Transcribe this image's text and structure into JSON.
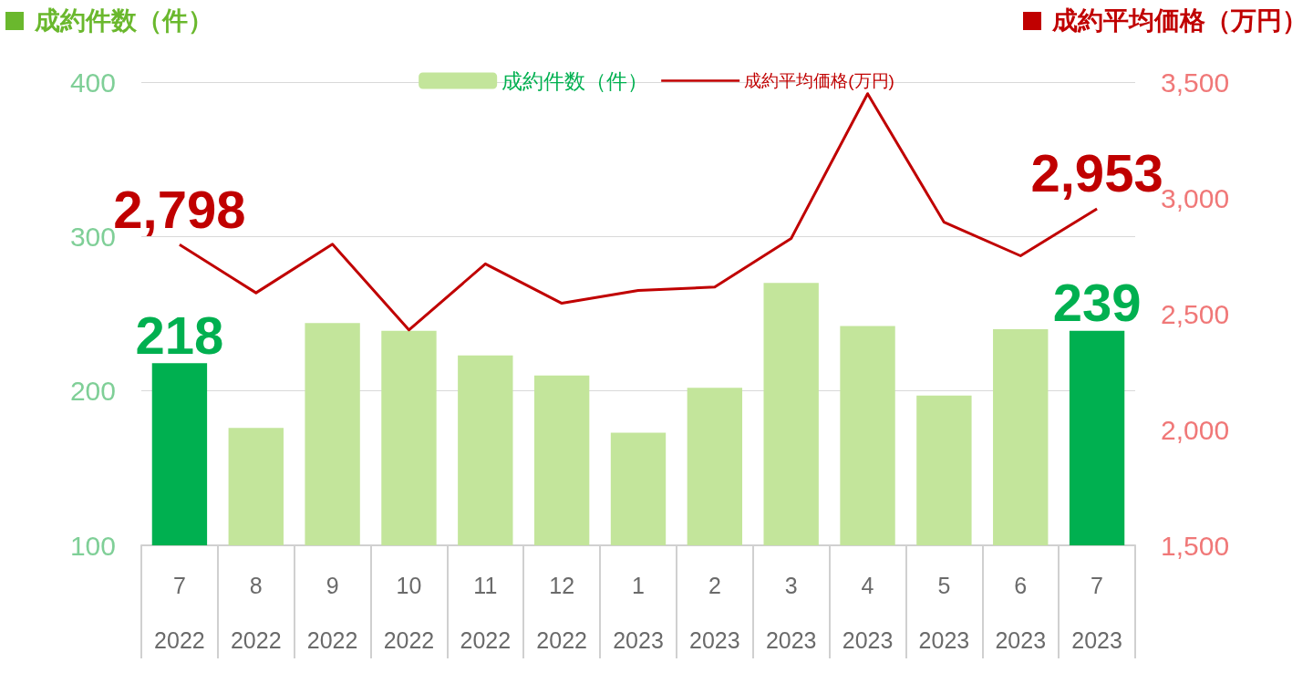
{
  "chart_data": {
    "type": "bar",
    "ylabel": "成約件数（件）",
    "y2label": "成約平均価格（万円）",
    "categories": [
      "7\n2022",
      "8\n2022",
      "9\n2022",
      "10\n2022",
      "11\n2022",
      "12\n2022",
      "1\n2023",
      "2\n2023",
      "3\n2023",
      "4\n2023",
      "5\n2023",
      "6\n2023",
      "7\n2023"
    ],
    "series": [
      {
        "name": "成約件数（件）",
        "color": "#c3e59b",
        "colors": [
          "#00b050",
          "#c3e59b",
          "#c3e59b",
          "#c3e59b",
          "#c3e59b",
          "#c3e59b",
          "#c3e59b",
          "#c3e59b",
          "#c3e59b",
          "#c3e59b",
          "#c3e59b",
          "#c3e59b",
          "#00b050"
        ],
        "values": [
          218,
          176,
          244,
          239,
          223,
          210,
          173,
          202,
          270,
          242,
          197,
          240,
          239
        ],
        "value_labels": [
          "218",
          null,
          null,
          null,
          null,
          null,
          null,
          null,
          null,
          null,
          null,
          null,
          "239"
        ]
      },
      {
        "name": "成約平均価格(万円)",
        "type": "line",
        "axis": "y2",
        "color": "#c00000",
        "values": [
          2798,
          2590,
          2800,
          2430,
          2715,
          2545,
          2600,
          2615,
          2825,
          3450,
          2895,
          2750,
          2953
        ],
        "value_labels": [
          "2,798",
          null,
          null,
          null,
          null,
          null,
          null,
          null,
          null,
          null,
          null,
          null,
          "2,953"
        ]
      }
    ],
    "ylim": [
      100,
      400
    ],
    "yticks": [
      100,
      200,
      300,
      400
    ],
    "y2lim": [
      1500,
      3500
    ],
    "y2ticks": [
      {
        "value": 1500,
        "label": "1,500"
      },
      {
        "value": 2000,
        "label": "2,000"
      },
      {
        "value": 2500,
        "label": "2,500"
      },
      {
        "value": 3000,
        "label": "3,000"
      },
      {
        "value": 3500,
        "label": "3,500"
      }
    ],
    "grid": "y",
    "legend": "top",
    "marker": "none"
  }
}
